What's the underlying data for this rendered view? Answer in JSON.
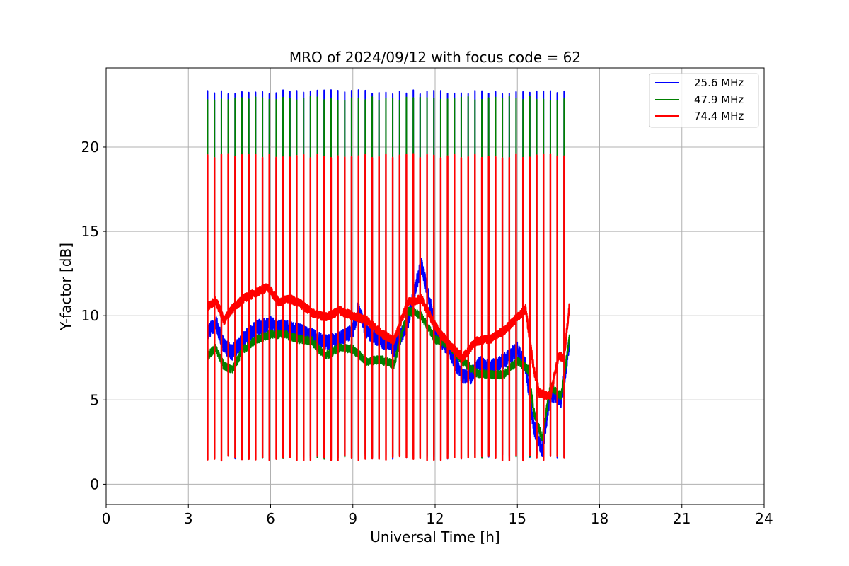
{
  "chart_data": {
    "type": "line",
    "title": "MRO of 2024/09/12 with focus code = 62",
    "xlabel": "Universal Time [h]",
    "ylabel": "Y-factor [dB]",
    "xlim": [
      0,
      24
    ],
    "ylim": [
      -1.2,
      24.7
    ],
    "xticks": [
      0,
      3,
      6,
      9,
      12,
      15,
      18,
      21,
      24
    ],
    "yticks": [
      0,
      5,
      10,
      15,
      20
    ],
    "grid": true,
    "legend_position": "top-right",
    "data_range_hours": [
      3.7,
      16.9
    ],
    "calibration_period_hours": 0.25,
    "series": [
      {
        "name": "25.6 MHz",
        "color": "#0000ff",
        "calibration_peak_db": 23.4,
        "calibration_low_db": 1.5,
        "baseline": [
          [
            3.7,
            9.0
          ],
          [
            4.0,
            9.6
          ],
          [
            4.3,
            8.2
          ],
          [
            4.6,
            7.8
          ],
          [
            5.0,
            8.6
          ],
          [
            5.5,
            9.3
          ],
          [
            6.0,
            9.5
          ],
          [
            6.5,
            9.3
          ],
          [
            7.0,
            9.1
          ],
          [
            7.5,
            8.8
          ],
          [
            8.0,
            8.4
          ],
          [
            8.5,
            8.6
          ],
          [
            9.0,
            9.1
          ],
          [
            9.2,
            10.4
          ],
          [
            9.5,
            9.0
          ],
          [
            10.0,
            8.6
          ],
          [
            10.5,
            8.0
          ],
          [
            11.0,
            9.6
          ],
          [
            11.3,
            11.8
          ],
          [
            11.5,
            13.0
          ],
          [
            11.8,
            10.9
          ],
          [
            12.0,
            9.0
          ],
          [
            12.5,
            8.0
          ],
          [
            13.0,
            6.4
          ],
          [
            13.3,
            6.4
          ],
          [
            13.6,
            7.2
          ],
          [
            14.0,
            6.9
          ],
          [
            14.5,
            7.3
          ],
          [
            15.0,
            8.0
          ],
          [
            15.3,
            7.0
          ],
          [
            15.6,
            3.4
          ],
          [
            15.9,
            2.0
          ],
          [
            16.2,
            5.4
          ],
          [
            16.6,
            5.0
          ],
          [
            16.9,
            8.4
          ]
        ]
      },
      {
        "name": "47.9 MHz",
        "color": "#008000",
        "calibration_peak_db": 23.0,
        "calibration_low_db": 1.5,
        "baseline": [
          [
            3.7,
            7.6
          ],
          [
            4.0,
            8.1
          ],
          [
            4.3,
            7.0
          ],
          [
            4.6,
            6.8
          ],
          [
            5.0,
            8.0
          ],
          [
            5.5,
            8.6
          ],
          [
            6.0,
            8.9
          ],
          [
            6.5,
            8.9
          ],
          [
            7.0,
            8.6
          ],
          [
            7.5,
            8.5
          ],
          [
            8.0,
            7.6
          ],
          [
            8.5,
            8.1
          ],
          [
            9.0,
            8.0
          ],
          [
            9.5,
            7.3
          ],
          [
            10.0,
            7.4
          ],
          [
            10.5,
            7.1
          ],
          [
            11.0,
            10.3
          ],
          [
            11.5,
            10.0
          ],
          [
            12.0,
            8.6
          ],
          [
            12.5,
            8.3
          ],
          [
            13.0,
            7.3
          ],
          [
            13.5,
            6.6
          ],
          [
            14.0,
            6.5
          ],
          [
            14.5,
            6.5
          ],
          [
            15.0,
            7.3
          ],
          [
            15.4,
            6.8
          ],
          [
            15.6,
            4.3
          ],
          [
            15.9,
            2.7
          ],
          [
            16.2,
            5.8
          ],
          [
            16.6,
            5.2
          ],
          [
            16.9,
            8.7
          ]
        ]
      },
      {
        "name": "74.4 MHz",
        "color": "#ff0000",
        "calibration_peak_db": 19.6,
        "calibration_low_db": 1.4,
        "baseline": [
          [
            3.7,
            10.5
          ],
          [
            4.0,
            10.9
          ],
          [
            4.3,
            9.7
          ],
          [
            4.6,
            10.4
          ],
          [
            5.0,
            11.0
          ],
          [
            5.5,
            11.4
          ],
          [
            5.9,
            11.7
          ],
          [
            6.3,
            10.8
          ],
          [
            6.7,
            11.0
          ],
          [
            7.0,
            10.8
          ],
          [
            7.5,
            10.2
          ],
          [
            8.0,
            9.9
          ],
          [
            8.5,
            10.3
          ],
          [
            9.0,
            10.0
          ],
          [
            9.5,
            9.7
          ],
          [
            10.0,
            9.0
          ],
          [
            10.5,
            8.5
          ],
          [
            11.0,
            10.8
          ],
          [
            11.5,
            11.0
          ],
          [
            12.0,
            9.4
          ],
          [
            12.5,
            8.3
          ],
          [
            13.0,
            7.5
          ],
          [
            13.5,
            8.5
          ],
          [
            14.0,
            8.6
          ],
          [
            14.5,
            9.1
          ],
          [
            15.0,
            9.9
          ],
          [
            15.3,
            10.4
          ],
          [
            15.6,
            6.8
          ],
          [
            15.8,
            5.4
          ],
          [
            16.2,
            5.2
          ],
          [
            16.5,
            7.6
          ],
          [
            16.7,
            7.5
          ],
          [
            16.9,
            10.6
          ]
        ]
      }
    ]
  }
}
